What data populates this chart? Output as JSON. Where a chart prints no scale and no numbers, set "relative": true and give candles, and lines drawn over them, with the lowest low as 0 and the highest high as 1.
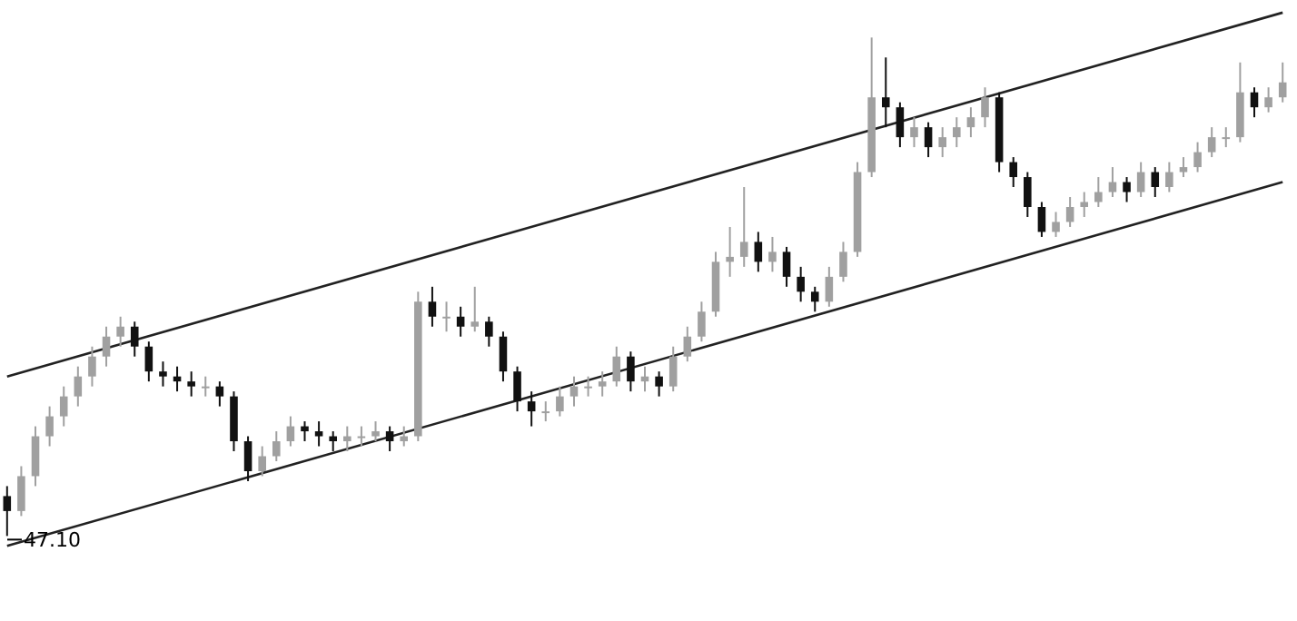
{
  "chart_data": {
    "type": "candlestick",
    "relative": true,
    "legend": false,
    "categories": [
      null,
      null,
      null,
      null,
      null,
      null,
      null,
      null,
      null,
      null,
      null,
      null,
      null,
      null,
      null,
      null,
      null,
      null,
      null,
      null,
      null,
      null,
      null,
      null,
      null,
      null,
      null,
      null,
      null,
      null,
      null,
      null,
      null,
      null,
      null,
      null,
      null,
      null,
      null,
      null,
      null,
      null,
      null,
      null,
      null,
      null,
      null,
      null,
      null,
      null,
      null,
      null,
      null,
      null,
      null,
      null,
      null,
      null,
      null,
      null,
      null,
      null,
      null,
      null,
      null,
      null,
      null,
      null,
      null,
      null,
      null,
      null,
      null,
      null,
      null,
      null,
      null,
      null,
      null,
      null,
      null,
      null,
      null,
      null,
      null,
      null,
      null,
      null,
      null,
      null,
      null
    ],
    "ohlc": [
      [
        0.08,
        0.1,
        0.0,
        0.05
      ],
      [
        0.05,
        0.14,
        0.04,
        0.12
      ],
      [
        0.12,
        0.22,
        0.1,
        0.2
      ],
      [
        0.2,
        0.26,
        0.18,
        0.24
      ],
      [
        0.24,
        0.3,
        0.22,
        0.28
      ],
      [
        0.28,
        0.34,
        0.26,
        0.32
      ],
      [
        0.32,
        0.38,
        0.3,
        0.36
      ],
      [
        0.36,
        0.42,
        0.34,
        0.4
      ],
      [
        0.4,
        0.44,
        0.38,
        0.42
      ],
      [
        0.42,
        0.43,
        0.36,
        0.38
      ],
      [
        0.38,
        0.39,
        0.31,
        0.33
      ],
      [
        0.33,
        0.35,
        0.3,
        0.32
      ],
      [
        0.32,
        0.34,
        0.29,
        0.31
      ],
      [
        0.31,
        0.33,
        0.28,
        0.3
      ],
      [
        0.3,
        0.32,
        0.28,
        0.3
      ],
      [
        0.3,
        0.31,
        0.26,
        0.28
      ],
      [
        0.28,
        0.29,
        0.17,
        0.19
      ],
      [
        0.19,
        0.2,
        0.11,
        0.13
      ],
      [
        0.13,
        0.18,
        0.12,
        0.16
      ],
      [
        0.16,
        0.21,
        0.15,
        0.19
      ],
      [
        0.19,
        0.24,
        0.18,
        0.22
      ],
      [
        0.22,
        0.23,
        0.19,
        0.21
      ],
      [
        0.21,
        0.23,
        0.18,
        0.2
      ],
      [
        0.2,
        0.21,
        0.17,
        0.19
      ],
      [
        0.19,
        0.22,
        0.17,
        0.2
      ],
      [
        0.2,
        0.22,
        0.18,
        0.2
      ],
      [
        0.2,
        0.23,
        0.19,
        0.21
      ],
      [
        0.21,
        0.22,
        0.17,
        0.19
      ],
      [
        0.19,
        0.22,
        0.18,
        0.2
      ],
      [
        0.2,
        0.49,
        0.19,
        0.47
      ],
      [
        0.47,
        0.5,
        0.42,
        0.44
      ],
      [
        0.44,
        0.47,
        0.41,
        0.44
      ],
      [
        0.44,
        0.46,
        0.4,
        0.42
      ],
      [
        0.42,
        0.5,
        0.41,
        0.43
      ],
      [
        0.43,
        0.44,
        0.38,
        0.4
      ],
      [
        0.4,
        0.41,
        0.31,
        0.33
      ],
      [
        0.33,
        0.34,
        0.25,
        0.27
      ],
      [
        0.27,
        0.29,
        0.22,
        0.25
      ],
      [
        0.25,
        0.27,
        0.23,
        0.25
      ],
      [
        0.25,
        0.3,
        0.24,
        0.28
      ],
      [
        0.28,
        0.32,
        0.26,
        0.3
      ],
      [
        0.3,
        0.32,
        0.28,
        0.3
      ],
      [
        0.3,
        0.33,
        0.28,
        0.31
      ],
      [
        0.31,
        0.38,
        0.3,
        0.36
      ],
      [
        0.36,
        0.37,
        0.29,
        0.31
      ],
      [
        0.31,
        0.34,
        0.29,
        0.32
      ],
      [
        0.32,
        0.33,
        0.28,
        0.3
      ],
      [
        0.3,
        0.38,
        0.29,
        0.36
      ],
      [
        0.36,
        0.42,
        0.35,
        0.4
      ],
      [
        0.4,
        0.47,
        0.39,
        0.45
      ],
      [
        0.45,
        0.57,
        0.44,
        0.55
      ],
      [
        0.55,
        0.62,
        0.52,
        0.56
      ],
      [
        0.56,
        0.7,
        0.54,
        0.59
      ],
      [
        0.59,
        0.61,
        0.53,
        0.55
      ],
      [
        0.55,
        0.6,
        0.53,
        0.57
      ],
      [
        0.57,
        0.58,
        0.5,
        0.52
      ],
      [
        0.52,
        0.54,
        0.47,
        0.49
      ],
      [
        0.49,
        0.5,
        0.45,
        0.47
      ],
      [
        0.47,
        0.54,
        0.46,
        0.52
      ],
      [
        0.52,
        0.59,
        0.51,
        0.57
      ],
      [
        0.57,
        0.75,
        0.56,
        0.73
      ],
      [
        0.73,
        1.0,
        0.72,
        0.88
      ],
      [
        0.88,
        0.96,
        0.82,
        0.86
      ],
      [
        0.86,
        0.87,
        0.78,
        0.8
      ],
      [
        0.8,
        0.84,
        0.78,
        0.82
      ],
      [
        0.82,
        0.83,
        0.76,
        0.78
      ],
      [
        0.78,
        0.82,
        0.76,
        0.8
      ],
      [
        0.8,
        0.84,
        0.78,
        0.82
      ],
      [
        0.82,
        0.86,
        0.8,
        0.84
      ],
      [
        0.84,
        0.9,
        0.82,
        0.88
      ],
      [
        0.88,
        0.89,
        0.73,
        0.75
      ],
      [
        0.75,
        0.76,
        0.7,
        0.72
      ],
      [
        0.72,
        0.73,
        0.64,
        0.66
      ],
      [
        0.66,
        0.67,
        0.6,
        0.61
      ],
      [
        0.61,
        0.65,
        0.6,
        0.63
      ],
      [
        0.63,
        0.68,
        0.62,
        0.66
      ],
      [
        0.66,
        0.69,
        0.64,
        0.67
      ],
      [
        0.67,
        0.72,
        0.66,
        0.69
      ],
      [
        0.69,
        0.74,
        0.68,
        0.71
      ],
      [
        0.71,
        0.72,
        0.67,
        0.69
      ],
      [
        0.69,
        0.75,
        0.68,
        0.73
      ],
      [
        0.73,
        0.74,
        0.68,
        0.7
      ],
      [
        0.7,
        0.75,
        0.69,
        0.73
      ],
      [
        0.73,
        0.76,
        0.72,
        0.74
      ],
      [
        0.74,
        0.79,
        0.73,
        0.77
      ],
      [
        0.77,
        0.82,
        0.76,
        0.8
      ],
      [
        0.8,
        0.82,
        0.78,
        0.8
      ],
      [
        0.8,
        0.95,
        0.79,
        0.89
      ],
      [
        0.89,
        0.9,
        0.84,
        0.86
      ],
      [
        0.86,
        0.9,
        0.85,
        0.88
      ],
      [
        0.88,
        0.95,
        0.87,
        0.91
      ]
    ],
    "colors": [
      "#111111",
      "#a0a0a0",
      "#a0a0a0",
      "#a0a0a0",
      "#a0a0a0",
      "#a0a0a0",
      "#a0a0a0",
      "#a0a0a0",
      "#a0a0a0",
      "#111111",
      "#111111",
      "#111111",
      "#111111",
      "#111111",
      "#a0a0a0",
      "#111111",
      "#111111",
      "#111111",
      "#a0a0a0",
      "#a0a0a0",
      "#a0a0a0",
      "#111111",
      "#111111",
      "#111111",
      "#a0a0a0",
      "#a0a0a0",
      "#a0a0a0",
      "#111111",
      "#a0a0a0",
      "#a0a0a0",
      "#111111",
      "#a0a0a0",
      "#111111",
      "#a0a0a0",
      "#111111",
      "#111111",
      "#111111",
      "#111111",
      "#a0a0a0",
      "#a0a0a0",
      "#a0a0a0",
      "#a0a0a0",
      "#a0a0a0",
      "#a0a0a0",
      "#111111",
      "#a0a0a0",
      "#111111",
      "#a0a0a0",
      "#a0a0a0",
      "#a0a0a0",
      "#a0a0a0",
      "#a0a0a0",
      "#a0a0a0",
      "#111111",
      "#a0a0a0",
      "#111111",
      "#111111",
      "#111111",
      "#a0a0a0",
      "#a0a0a0",
      "#a0a0a0",
      "#a0a0a0",
      "#111111",
      "#111111",
      "#a0a0a0",
      "#111111",
      "#a0a0a0",
      "#a0a0a0",
      "#a0a0a0",
      "#a0a0a0",
      "#111111",
      "#111111",
      "#111111",
      "#111111",
      "#a0a0a0",
      "#a0a0a0",
      "#a0a0a0",
      "#a0a0a0",
      "#a0a0a0",
      "#111111",
      "#a0a0a0",
      "#111111",
      "#a0a0a0",
      "#a0a0a0",
      "#a0a0a0",
      "#a0a0a0",
      "#a0a0a0",
      "#a0a0a0",
      "#111111",
      "#a0a0a0",
      "#a0a0a0"
    ],
    "series": [
      {
        "type": "line",
        "color": "#222222",
        "values": [
          0.32,
          null,
          null,
          null,
          null,
          null,
          null,
          null,
          null,
          null,
          null,
          null,
          null,
          null,
          null,
          null,
          null,
          null,
          null,
          null,
          null,
          null,
          null,
          null,
          null,
          null,
          null,
          null,
          null,
          null,
          null,
          null,
          null,
          null,
          null,
          null,
          null,
          null,
          null,
          null,
          null,
          null,
          null,
          null,
          null,
          null,
          null,
          null,
          null,
          null,
          null,
          null,
          null,
          null,
          null,
          null,
          null,
          null,
          null,
          null,
          null,
          null,
          null,
          null,
          null,
          null,
          null,
          null,
          null,
          null,
          null,
          null,
          null,
          null,
          null,
          null,
          null,
          null,
          null,
          null,
          null,
          null,
          null,
          null,
          null,
          null,
          null,
          null,
          null,
          null,
          1.05
        ]
      },
      {
        "type": "line",
        "color": "#222222",
        "values": [
          -0.02,
          null,
          null,
          null,
          null,
          null,
          null,
          null,
          null,
          null,
          null,
          null,
          null,
          null,
          null,
          null,
          null,
          null,
          null,
          null,
          null,
          null,
          null,
          null,
          null,
          null,
          null,
          null,
          null,
          null,
          null,
          null,
          null,
          null,
          null,
          null,
          null,
          null,
          null,
          null,
          null,
          null,
          null,
          null,
          null,
          null,
          null,
          null,
          null,
          null,
          null,
          null,
          null,
          null,
          null,
          null,
          null,
          null,
          null,
          null,
          null,
          null,
          null,
          null,
          null,
          null,
          null,
          null,
          null,
          null,
          null,
          null,
          null,
          null,
          null,
          null,
          null,
          null,
          null,
          null,
          null,
          null,
          null,
          null,
          null,
          null,
          null,
          null,
          null,
          null,
          0.71
        ]
      }
    ],
    "annotations": [
      {
        "text": "47.10",
        "y": 0
      }
    ]
  }
}
